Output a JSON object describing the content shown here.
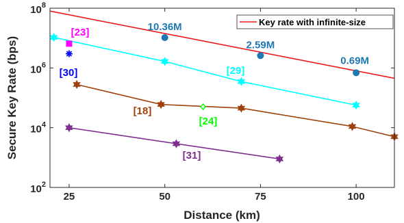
{
  "chart_data": {
    "type": "line",
    "xlabel": "Distance (km)",
    "ylabel": "Secure Key Rate (bps)",
    "xlim": [
      20,
      110
    ],
    "ylim_log10": [
      2,
      8
    ],
    "yscale": "log",
    "x_ticks": [
      25,
      50,
      75,
      100
    ],
    "x_tick_labels": [
      "25",
      "50",
      "75",
      "100"
    ],
    "y_ticks": [
      100,
      10000,
      1000000,
      100000000
    ],
    "y_tick_labels": [
      {
        "base": "10",
        "exp": "2"
      },
      {
        "base": "10",
        "exp": "4"
      },
      {
        "base": "10",
        "exp": "6"
      },
      {
        "base": "10",
        "exp": "8"
      }
    ],
    "legend": {
      "placement": "top-right",
      "entries": [
        {
          "label": "Key rate with infinite-size",
          "color": "#e8191b"
        }
      ]
    },
    "series": [
      {
        "name": "Key rate with infinite-size",
        "color": "#e8191b",
        "marker": "none",
        "x": [
          20,
          110
        ],
        "y": [
          80000000,
          450000
        ]
      },
      {
        "color": "#1f77b4",
        "marker": "circle",
        "line": false,
        "x": [
          50,
          75,
          100
        ],
        "y": [
          10360000,
          2590000,
          690000
        ],
        "labels": [
          "10.36M",
          "2.59M",
          "0.69M"
        ]
      },
      {
        "color": "#00ffff",
        "marker": "hexagram",
        "x": [
          21,
          50,
          70,
          100
        ],
        "y": [
          10500000,
          1650000,
          350000,
          57000
        ],
        "tag": "[29]"
      },
      {
        "color": "#a0410d",
        "marker": "hexagram",
        "x": [
          27,
          49,
          70,
          99,
          110
        ],
        "y": [
          280000,
          60000,
          45000,
          11000,
          5000
        ],
        "tag": "[18]"
      },
      {
        "color": "#7e2f8e",
        "marker": "hexagram",
        "x": [
          25,
          53,
          80
        ],
        "y": [
          10000,
          2900,
          900
        ],
        "tag": "[31]"
      },
      {
        "color": "#ff00ff",
        "marker": "square",
        "line": false,
        "x": [
          25
        ],
        "y": [
          6500000
        ],
        "tag": "[23]"
      },
      {
        "color": "#0000ff",
        "marker": "asterisk",
        "line": false,
        "x": [
          25
        ],
        "y": [
          3000000
        ],
        "tag": "[30]"
      },
      {
        "color": "#00ff00",
        "marker": "diamond",
        "line": false,
        "x": [
          60
        ],
        "y": [
          50000
        ],
        "tag": "[24]"
      }
    ]
  }
}
